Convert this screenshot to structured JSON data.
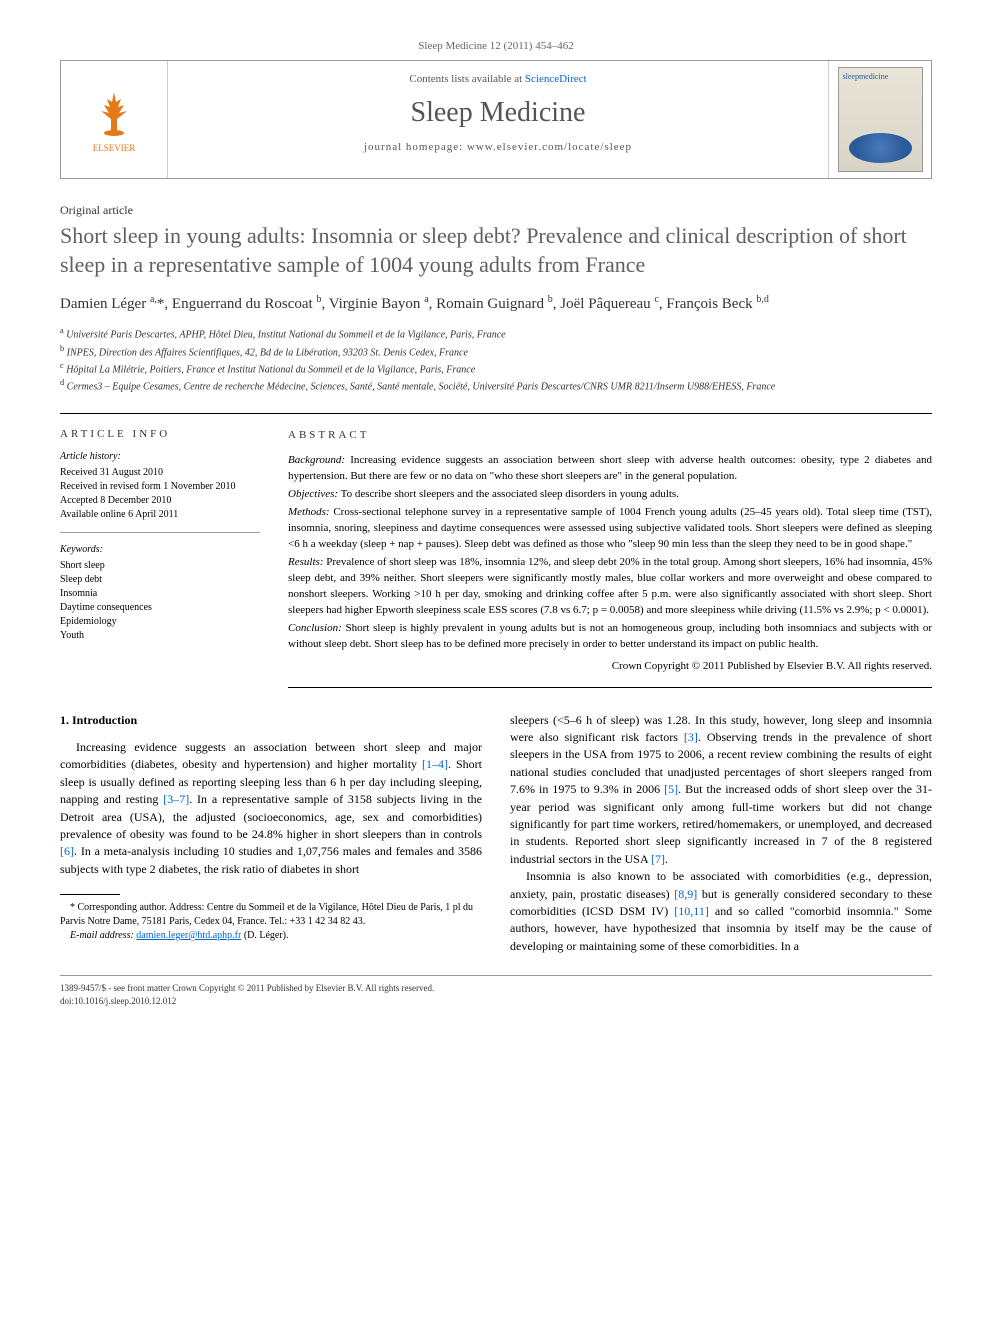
{
  "header": {
    "citation": "Sleep Medicine 12 (2011) 454–462",
    "contents_prefix": "Contents lists available at ",
    "contents_link": "ScienceDirect",
    "journal": "Sleep Medicine",
    "homepage_prefix": "journal homepage: ",
    "homepage": "www.elsevier.com/locate/sleep",
    "publisher_name": "ELSEVIER",
    "cover_label": "sleepmedicine"
  },
  "article": {
    "type": "Original article",
    "title": "Short sleep in young adults: Insomnia or sleep debt? Prevalence and clinical description of short sleep in a representative sample of 1004 young adults from France",
    "authors_html": "Damien Léger <sup>a,</sup>*, Enguerrand du Roscoat <sup>b</sup>, Virginie Bayon <sup>a</sup>, Romain Guignard <sup>b</sup>, Joël Pâquereau <sup>c</sup>, François Beck <sup>b,d</sup>",
    "affiliations": [
      "a Université Paris Descartes, APHP, Hôtel Dieu, Institut National du Sommeil et de la Vigilance, Paris, France",
      "b INPES, Direction des Affaires Scientifiques, 42, Bd de la Libération, 93203 St. Denis Cedex, France",
      "c Hôpital La Milétrie, Poitiers, France et Institut National du Sommeil et de la Vigilance, Paris, France",
      "d Cermes3 – Equipe Cesames, Centre de recherche Médecine, Sciences, Santé, Santé mentale, Société, Université Paris Descartes/CNRS UMR 8211/Inserm U988/EHESS, France"
    ]
  },
  "info": {
    "heading": "ARTICLE INFO",
    "history_label": "Article history:",
    "history": [
      "Received 31 August 2010",
      "Received in revised form 1 November 2010",
      "Accepted 8 December 2010",
      "Available online 6 April 2011"
    ],
    "keywords_label": "Keywords:",
    "keywords": [
      "Short sleep",
      "Sleep debt",
      "Insomnia",
      "Daytime consequences",
      "Epidemiology",
      "Youth"
    ]
  },
  "abstract": {
    "heading": "ABSTRACT",
    "background_label": "Background:",
    "background": "Increasing evidence suggests an association between short sleep with adverse health outcomes: obesity, type 2 diabetes and hypertension. But there are few or no data on \"who these short sleepers are\" in the general population.",
    "objectives_label": "Objectives:",
    "objectives": "To describe short sleepers and the associated sleep disorders in young adults.",
    "methods_label": "Methods:",
    "methods": "Cross-sectional telephone survey in a representative sample of 1004 French young adults (25–45 years old). Total sleep time (TST), insomnia, snoring, sleepiness and daytime consequences were assessed using subjective validated tools. Short sleepers were defined as sleeping <6 h a weekday (sleep + nap + pauses). Sleep debt was defined as those who \"sleep 90 min less than the sleep they need to be in good shape.\"",
    "results_label": "Results:",
    "results": "Prevalence of short sleep was 18%, insomnia 12%, and sleep debt 20% in the total group. Among short sleepers, 16% had insomnia, 45% sleep debt, and 39% neither. Short sleepers were significantly mostly males, blue collar workers and more overweight and obese compared to nonshort sleepers. Working >10 h per day, smoking and drinking coffee after 5 p.m. were also significantly associated with short sleep. Short sleepers had higher Epworth sleepiness scale ESS scores (7.8 vs 6.7; p = 0.0058) and more sleepiness while driving (11.5% vs 2.9%; p < 0.0001).",
    "conclusion_label": "Conclusion:",
    "conclusion": "Short sleep is highly prevalent in young adults but is not an homogeneous group, including both insomniacs and subjects with or without sleep debt. Short sleep has to be defined more precisely in order to better understand its impact on public health.",
    "copyright": "Crown Copyright © 2011 Published by Elsevier B.V. All rights reserved."
  },
  "body": {
    "section1_heading": "1. Introduction",
    "col1_p1": "Increasing evidence suggests an association between short sleep and major comorbidities (diabetes, obesity and hypertension) and higher mortality [1–4]. Short sleep is usually defined as reporting sleeping less than 6 h per day including sleeping, napping and resting [3–7]. In a representative sample of 3158 subjects living in the Detroit area (USA), the adjusted (socioeconomics, age, sex and comorbidities) prevalence of obesity was found to be 24.8% higher in short sleepers than in controls [6]. In a meta-analysis including 10 studies and 1,07,756 males and females and 3586 subjects with type 2 diabetes, the risk ratio of diabetes in short",
    "col2_p1": "sleepers (<5–6 h of sleep) was 1.28. In this study, however, long sleep and insomnia were also significant risk factors [3]. Observing trends in the prevalence of short sleepers in the USA from 1975 to 2006, a recent review combining the results of eight national studies concluded that unadjusted percentages of short sleepers ranged from 7.6% in 1975 to 9.3% in 2006 [5]. But the increased odds of short sleep over the 31-year period was significant only among full-time workers but did not change significantly for part time workers, retired/homemakers, or unemployed, and decreased in students. Reported short sleep significantly increased in 7 of the 8 registered industrial sectors in the USA [7].",
    "col2_p2": "Insomnia is also known to be associated with comorbidities (e.g., depression, anxiety, pain, prostatic diseases) [8,9] but is generally considered secondary to these comorbidities (ICSD DSM IV) [10,11] and so called \"comorbid insomnia.\" Some authors, however, have hypothesized that insomnia by itself may be the cause of developing or maintaining some of these comorbidities. In a"
  },
  "footnotes": {
    "corr": "* Corresponding author. Address: Centre du Sommeil et de la Vigilance, Hôtel Dieu de Paris, 1 pl du Parvis Notre Dame, 75181 Paris, Cedex 04, France. Tel.: +33 1 42 34 82 43.",
    "email_label": "E-mail address:",
    "email": "damien.leger@htd.aphp.fr",
    "email_suffix": "(D. Léger)."
  },
  "footer": {
    "line1": "1389-9457/$ - see front matter Crown Copyright © 2011 Published by Elsevier B.V. All rights reserved.",
    "line2": "doi:10.1016/j.sleep.2010.12.012"
  },
  "colors": {
    "link": "#0066cc",
    "elsevier_orange": "#e67817",
    "title_gray": "#606060",
    "text": "#000000",
    "muted": "#555555"
  }
}
